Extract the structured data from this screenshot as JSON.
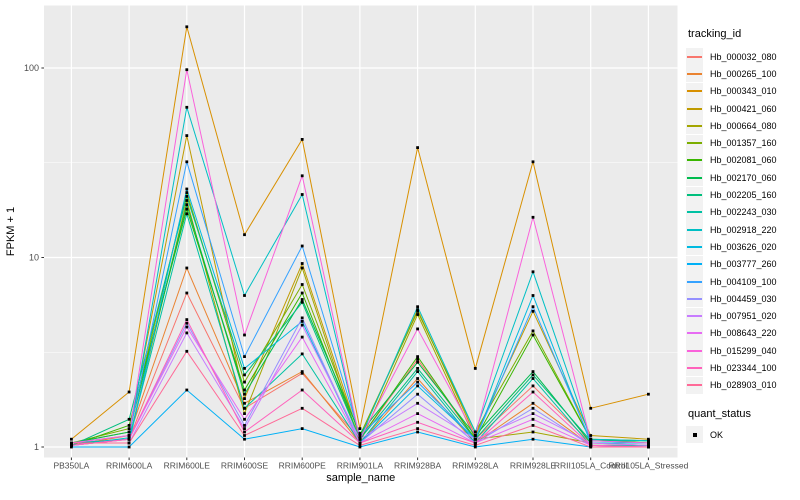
{
  "chart_data": {
    "type": "line",
    "xlabel": "sample_name",
    "ylabel": "FPKM + 1",
    "y_scale": "log10",
    "y_ticks": [
      1,
      10,
      100
    ],
    "y_minor_ticks": [
      3.162,
      31.62
    ],
    "grid": true,
    "legend_position": "right",
    "panel_bg": "#EBEBEB",
    "grid_color": "#FFFFFF",
    "key_bg": "#F2F2F2",
    "tick_label_color": "#4D4D4D",
    "point_color": "#000000",
    "categories": [
      "PB350LA",
      "RRIM600LA",
      "RRIM600LE",
      "RRIM600SE",
      "RRIM600PE",
      "RRIM901LA",
      "RRIM928BA",
      "RRIM928LA",
      "RRIM928LE",
      "RRII105LA_Control",
      "RRII105LA_Stressed"
    ],
    "series": [
      {
        "name": "Hb_000032_080",
        "color": "#F8766D",
        "values": [
          1.05,
          1.1,
          6.5,
          1.6,
          2.45,
          1.1,
          2.9,
          1.1,
          2.1,
          1.05,
          1.02
        ]
      },
      {
        "name": "Hb_000265_100",
        "color": "#EA8331",
        "values": [
          1.02,
          1.15,
          8.8,
          1.7,
          2.5,
          1.05,
          2.3,
          1.05,
          1.7,
          1.02,
          1.02
        ]
      },
      {
        "name": "Hb_000343_010",
        "color": "#D89000",
        "values": [
          1.1,
          1.95,
          165,
          13.2,
          42,
          1.25,
          38,
          2.6,
          32,
          1.6,
          1.9
        ]
      },
      {
        "name": "Hb_000421_060",
        "color": "#C09B00",
        "values": [
          1.05,
          1.2,
          44,
          1.8,
          9.3,
          1.12,
          5.3,
          1.15,
          5.2,
          1.15,
          1.1
        ]
      },
      {
        "name": "Hb_000664_080",
        "color": "#A3A500",
        "values": [
          1.02,
          1.1,
          20,
          1.5,
          8.8,
          1.05,
          5.0,
          1.1,
          1.2,
          1.05,
          1.05
        ]
      },
      {
        "name": "Hb_001357_160",
        "color": "#7CAE00",
        "values": [
          1.05,
          1.25,
          22,
          2.2,
          7.2,
          1.15,
          5.2,
          1.2,
          4.1,
          1.1,
          1.05
        ]
      },
      {
        "name": "Hb_002081_060",
        "color": "#39B600",
        "values": [
          1.02,
          1.3,
          18,
          2.0,
          6.5,
          1.1,
          3.0,
          1.1,
          3.9,
          1.1,
          1.08
        ]
      },
      {
        "name": "Hb_002170_060",
        "color": "#00BB4E",
        "values": [
          1.05,
          1.2,
          19,
          1.9,
          6.0,
          1.18,
          2.8,
          1.15,
          2.5,
          1.05,
          1.05
        ]
      },
      {
        "name": "Hb_002205_160",
        "color": "#00BF7D",
        "values": [
          1.02,
          1.4,
          21,
          2.4,
          5.8,
          1.1,
          2.6,
          1.1,
          2.4,
          1.08,
          1.08
        ]
      },
      {
        "name": "Hb_002243_030",
        "color": "#00C1A3",
        "values": [
          1.05,
          1.1,
          17,
          1.6,
          3.1,
          1.05,
          2.5,
          1.05,
          2.3,
          1.02,
          1.02
        ]
      },
      {
        "name": "Hb_002918_220",
        "color": "#00BFC4",
        "values": [
          1.02,
          1.12,
          62,
          6.3,
          21.5,
          1.1,
          5.5,
          1.2,
          8.4,
          1.1,
          1.08
        ]
      },
      {
        "name": "Hb_003626_020",
        "color": "#00BAE0",
        "values": [
          1.05,
          1.05,
          23,
          2.6,
          4.6,
          1.05,
          2.1,
          1.1,
          6.3,
          1.05,
          1.05
        ]
      },
      {
        "name": "Hb_003777_260",
        "color": "#00B0F6",
        "values": [
          1.0,
          1.0,
          2.0,
          1.1,
          1.25,
          1.0,
          1.2,
          1.0,
          1.1,
          1.0,
          1.0
        ]
      },
      {
        "name": "Hb_004109_100",
        "color": "#35A2FF",
        "values": [
          1.05,
          1.15,
          32,
          3.0,
          11.5,
          1.15,
          2.2,
          1.1,
          5.5,
          1.08,
          1.05
        ]
      },
      {
        "name": "Hb_004459_030",
        "color": "#9590FF",
        "values": [
          1.02,
          1.1,
          4.5,
          1.3,
          4.8,
          1.05,
          1.9,
          1.05,
          1.6,
          1.02,
          1.0
        ]
      },
      {
        "name": "Hb_007951_020",
        "color": "#C77CFF",
        "values": [
          1.05,
          1.05,
          4.0,
          1.25,
          4.4,
          1.1,
          1.7,
          1.1,
          1.5,
          1.05,
          1.02
        ]
      },
      {
        "name": "Hb_008643_220",
        "color": "#E76BF3",
        "values": [
          1.02,
          1.1,
          4.3,
          1.4,
          3.8,
          1.05,
          1.5,
          1.05,
          1.4,
          1.02,
          1.0
        ]
      },
      {
        "name": "Hb_015299_040",
        "color": "#FA62DB",
        "values": [
          1.05,
          1.15,
          98,
          3.9,
          27,
          1.1,
          4.2,
          1.15,
          16.3,
          1.08,
          1.05
        ]
      },
      {
        "name": "Hb_023344_100",
        "color": "#FF62BC",
        "values": [
          1.02,
          1.1,
          4.7,
          1.2,
          2.0,
          1.05,
          1.35,
          1.05,
          1.95,
          1.02,
          1.0
        ]
      },
      {
        "name": "Hb_028903_010",
        "color": "#FF6A98",
        "values": [
          1.05,
          1.05,
          3.2,
          1.15,
          1.6,
          1.02,
          1.25,
          1.02,
          1.3,
          1.0,
          1.0
        ]
      }
    ]
  },
  "legend": {
    "tracking_title": "tracking_id",
    "quant_title": "quant_status",
    "quant_items": [
      {
        "label": "OK"
      }
    ]
  }
}
